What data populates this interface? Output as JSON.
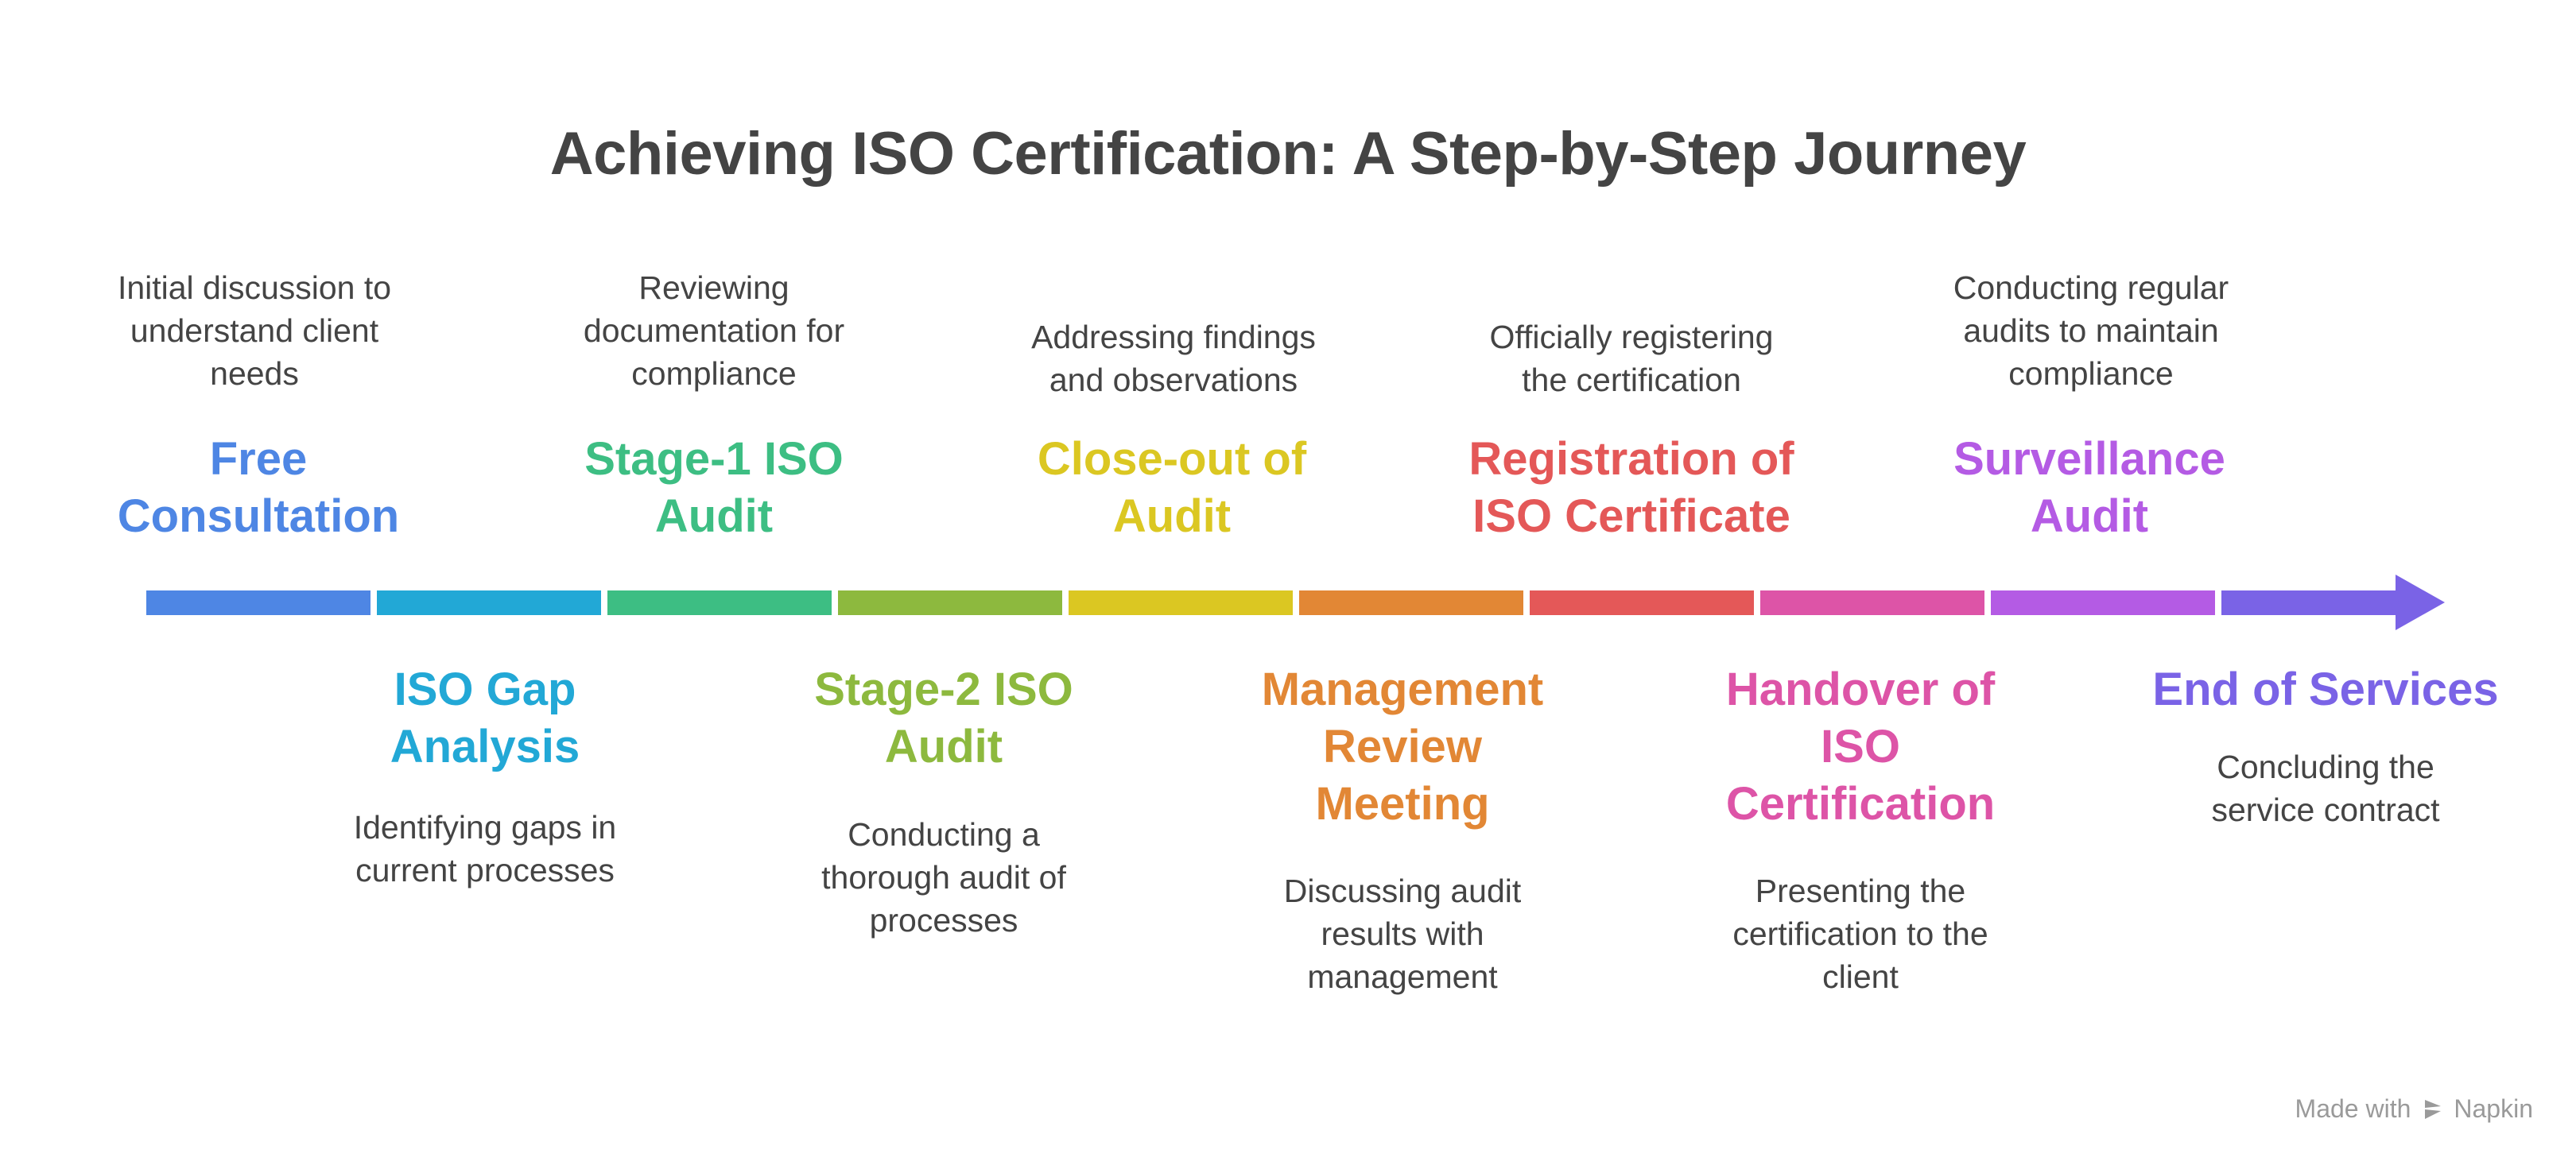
{
  "title": "Achieving ISO Certification: A Step-by-Step Journey",
  "steps": [
    {
      "name": [
        "Free",
        "Consultation"
      ],
      "desc": [
        "Initial discussion to",
        "understand client",
        "needs"
      ],
      "color": "#4E86E4"
    },
    {
      "name": [
        "ISO Gap",
        "Analysis"
      ],
      "desc": [
        "Identifying gaps in",
        "current processes"
      ],
      "color": "#22A8D6"
    },
    {
      "name": [
        "Stage-1 ISO",
        "Audit"
      ],
      "desc": [
        "Reviewing",
        "documentation for",
        "compliance"
      ],
      "color": "#3DBE83"
    },
    {
      "name": [
        "Stage-2 ISO",
        "Audit"
      ],
      "desc": [
        "Conducting a",
        "thorough audit of",
        "processes"
      ],
      "color": "#8DB93E"
    },
    {
      "name": [
        "Close-out of",
        "Audit"
      ],
      "desc": [
        "Addressing findings",
        "and observations"
      ],
      "color": "#DBC722"
    },
    {
      "name": [
        "Management",
        "Review",
        "Meeting"
      ],
      "desc": [
        "Discussing audit",
        "results with",
        "management"
      ],
      "color": "#E28735"
    },
    {
      "name": [
        "Registration of",
        "ISO Certificate"
      ],
      "desc": [
        "Officially registering",
        "the certification"
      ],
      "color": "#E45858"
    },
    {
      "name": [
        "Handover of",
        "ISO",
        "Certification"
      ],
      "desc": [
        "Presenting the",
        "certification to the",
        "client"
      ],
      "color": "#DD54A7"
    },
    {
      "name": [
        "Surveillance",
        "Audit"
      ],
      "desc": [
        "Conducting regular",
        "audits to maintain",
        "compliance"
      ],
      "color": "#B45BE4"
    },
    {
      "name": [
        "End of Services"
      ],
      "desc": [
        "Concluding the",
        "service contract"
      ],
      "color": "#7A63E6"
    }
  ],
  "footer": {
    "made_with": "Made with",
    "brand": "Napkin"
  }
}
